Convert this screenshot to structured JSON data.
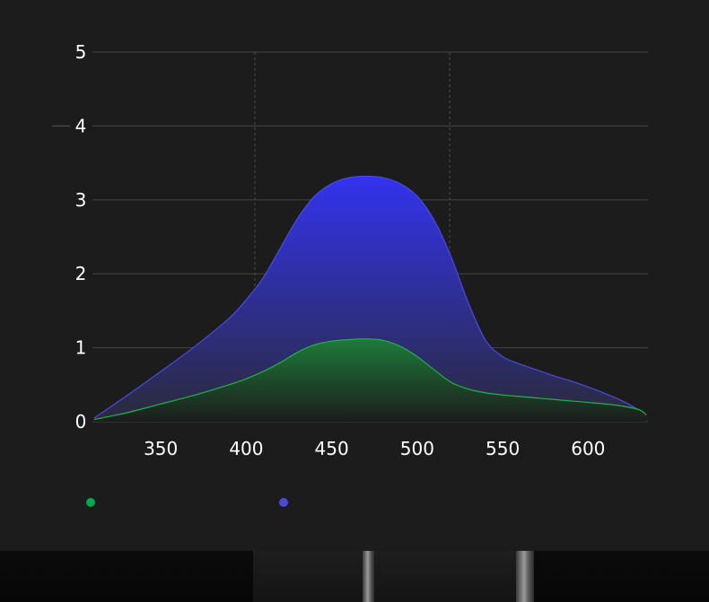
{
  "chart_data": {
    "type": "area",
    "xlim": [
      310,
      635
    ],
    "ylim": [
      0,
      5
    ],
    "xticks": [
      350,
      400,
      450,
      500,
      550,
      600
    ],
    "yticks": [
      0,
      1,
      2,
      3,
      4,
      5
    ],
    "grid": true,
    "vertical_guides": [
      405,
      519
    ],
    "series": [
      {
        "color": "#4a4ae0",
        "fill_top": "#3333ee",
        "fill_bottom": "#2a2a3a",
        "x": [
          311,
          330,
          350,
          370,
          390,
          400,
          410,
          420,
          430,
          440,
          450,
          460,
          470,
          480,
          490,
          500,
          510,
          520,
          530,
          540,
          550,
          560,
          570,
          580,
          590,
          600,
          610,
          620,
          630,
          634
        ],
        "y": [
          0.05,
          0.35,
          0.68,
          1.02,
          1.4,
          1.65,
          1.95,
          2.35,
          2.75,
          3.05,
          3.22,
          3.3,
          3.32,
          3.3,
          3.22,
          3.05,
          2.72,
          2.22,
          1.6,
          1.1,
          0.88,
          0.78,
          0.7,
          0.62,
          0.55,
          0.47,
          0.38,
          0.28,
          0.15,
          0.05
        ]
      },
      {
        "color": "#22b04a",
        "fill_top": "#1f7a3a",
        "fill_bottom": "#1c1c1c",
        "x": [
          311,
          330,
          350,
          370,
          390,
          400,
          410,
          420,
          430,
          440,
          450,
          460,
          470,
          480,
          490,
          500,
          510,
          520,
          530,
          540,
          550,
          560,
          570,
          580,
          590,
          600,
          610,
          620,
          630,
          634
        ],
        "y": [
          0.03,
          0.12,
          0.24,
          0.36,
          0.5,
          0.58,
          0.68,
          0.8,
          0.94,
          1.04,
          1.09,
          1.11,
          1.12,
          1.1,
          1.02,
          0.88,
          0.7,
          0.53,
          0.44,
          0.39,
          0.36,
          0.34,
          0.32,
          0.3,
          0.28,
          0.26,
          0.24,
          0.21,
          0.16,
          0.09
        ]
      }
    ]
  },
  "legend": {
    "items": [
      {
        "color": "#00a94f"
      },
      {
        "color": "#4a4ae0"
      }
    ]
  }
}
